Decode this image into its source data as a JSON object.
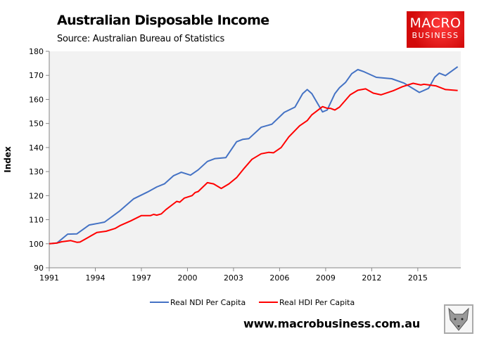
{
  "title": "Australian Disposable Income",
  "subtitle": "Source: Australian Bureau of Statistics",
  "logo": {
    "line1": "MACRO",
    "line2": "BUSINESS",
    "color": "#e01b1b"
  },
  "footer_url": "www.macrobusiness.com.au",
  "mascot_icon": "wolf-logo-icon",
  "chart_data": {
    "type": "line",
    "title": "Australian Disposable Income",
    "ylabel": "Index",
    "xlabel": "",
    "xlim": [
      1991,
      2017.8
    ],
    "ylim": [
      90,
      180
    ],
    "yticks": [
      90,
      100,
      110,
      120,
      130,
      140,
      150,
      160,
      170,
      180
    ],
    "xticks": [
      1991,
      1994,
      1997,
      2000,
      2003,
      2006,
      2009,
      2012,
      2015
    ],
    "grid": false,
    "background": "#f2f2f2",
    "legend_position": "bottom",
    "series": [
      {
        "name": "Real NDI Per Capita",
        "color": "#4472c4",
        "x": [
          1991,
          1991.5,
          1992.2,
          1992.8,
          1993.6,
          1994.2,
          1994.6,
          1995.6,
          1996.5,
          1997.4,
          1998.0,
          1998.5,
          1999.1,
          1999.6,
          2000.2,
          2000.7,
          2001.3,
          2001.8,
          2002.5,
          2003.2,
          2003.6,
          2004.0,
          2004.8,
          2005.5,
          2006.3,
          2007.0,
          2007.5,
          2007.8,
          2008.1,
          2008.8,
          2009.1,
          2009.6,
          2009.9,
          2010.3,
          2010.7,
          2011.1,
          2011.5,
          2012.3,
          2013.3,
          2014.1,
          2015.1,
          2015.7,
          2016.1,
          2016.4,
          2016.8,
          2017.6
        ],
        "values": [
          100,
          100.3,
          104,
          104.1,
          107.8,
          108.5,
          109,
          113.7,
          118.7,
          121.5,
          123.6,
          124.9,
          128.3,
          129.7,
          128.5,
          130.7,
          134.2,
          135.4,
          135.8,
          142.4,
          143.4,
          143.7,
          148.4,
          149.7,
          154.6,
          156.8,
          162.4,
          164.1,
          162.4,
          154.8,
          155.6,
          162.4,
          164.9,
          167.1,
          170.7,
          172.4,
          171.5,
          169.2,
          168.6,
          166.8,
          162.9,
          164.6,
          169.2,
          170.9,
          169.9,
          173.6
        ]
      },
      {
        "name": "Real HDI Per Capita",
        "color": "#ff0000",
        "x": [
          1991,
          1991.5,
          1991.8,
          1992.4,
          1992.8,
          1993.0,
          1993.5,
          1994.1,
          1994.7,
          1995.3,
          1995.6,
          1996.3,
          1997.0,
          1997.6,
          1997.8,
          1998.0,
          1998.3,
          1998.6,
          1999.3,
          1999.5,
          1999.8,
          2000.3,
          2000.5,
          2000.7,
          2001.3,
          2001.7,
          2002.2,
          2002.7,
          2003.2,
          2003.7,
          2004.2,
          2004.8,
          2005.3,
          2005.6,
          2006.1,
          2006.6,
          2007.3,
          2007.8,
          2008.1,
          2008.8,
          2009.1,
          2009.3,
          2009.6,
          2009.9,
          2010.6,
          2011.1,
          2011.6,
          2012.1,
          2012.6,
          2013.4,
          2014.0,
          2014.7,
          2015.2,
          2015.4,
          2016.2,
          2016.8,
          2017.6
        ],
        "values": [
          100,
          100.3,
          100.8,
          101.3,
          100.6,
          100.7,
          102.5,
          104.7,
          105.2,
          106.4,
          107.5,
          109.5,
          111.7,
          111.7,
          112.2,
          111.9,
          112.4,
          114.2,
          117.6,
          117.3,
          119,
          120,
          121.3,
          121.7,
          125.4,
          124.9,
          123,
          124.9,
          127.5,
          131.4,
          135.1,
          137.4,
          138,
          137.8,
          140,
          144.4,
          149,
          151.2,
          153.6,
          157,
          156.3,
          156.3,
          155.6,
          156.8,
          161.9,
          163.8,
          164.4,
          162.6,
          161.9,
          163.6,
          165.3,
          166.7,
          166,
          166.3,
          165.6,
          164.1,
          163.7
        ]
      }
    ]
  }
}
